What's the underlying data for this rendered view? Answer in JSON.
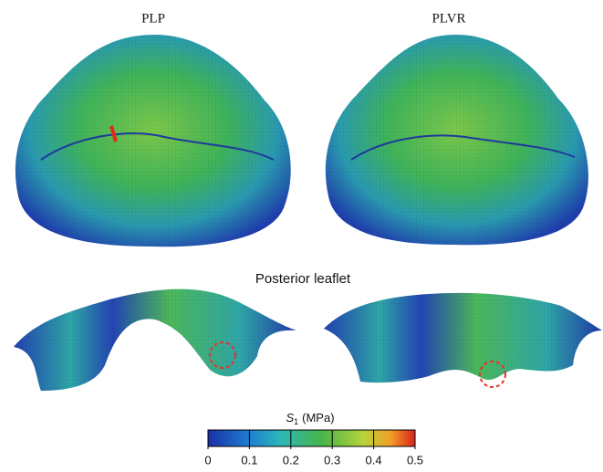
{
  "panels": {
    "left_label": "PLP",
    "right_label": "PLVR",
    "bottom_label": "Posterior leaflet"
  },
  "colorbar": {
    "symbol": "S",
    "subscript": "1",
    "unit": "(MPa)",
    "range": [
      0,
      0.5
    ],
    "ticks": [
      0,
      0.1,
      0.2,
      0.3,
      0.4,
      0.5
    ]
  }
}
